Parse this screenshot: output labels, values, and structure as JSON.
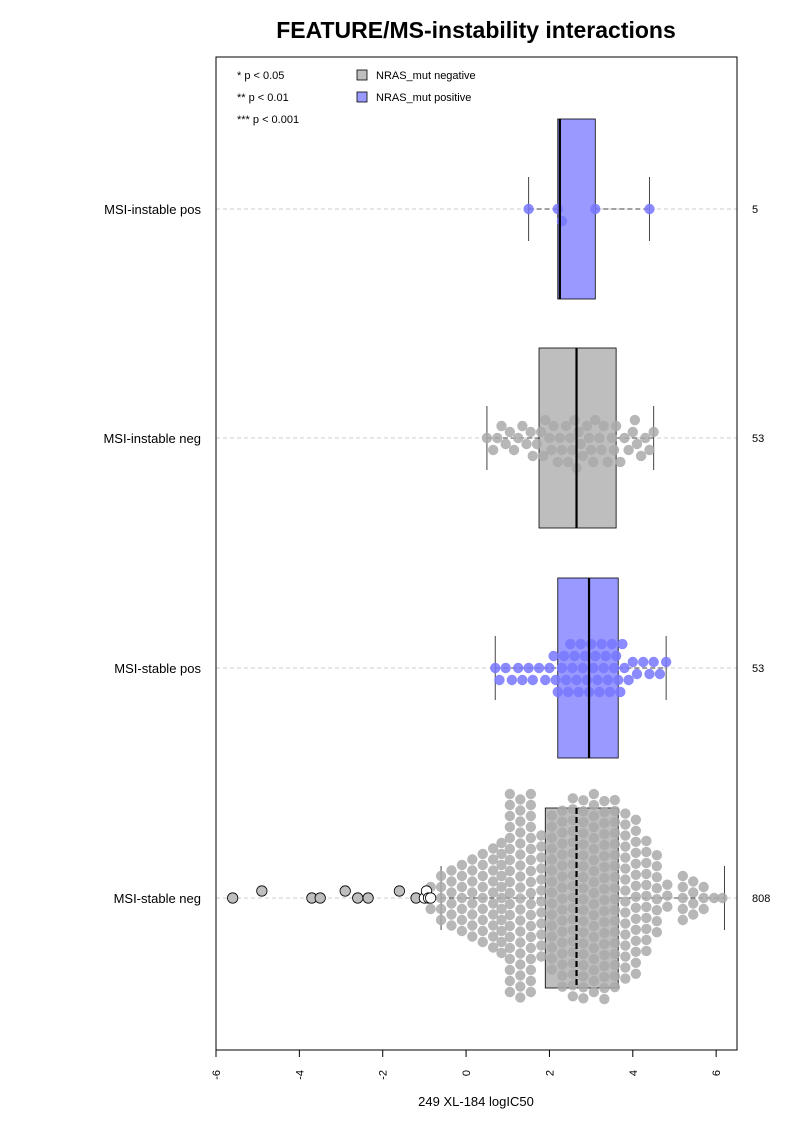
{
  "chart_data": {
    "type": "box-beeswarm",
    "title": "FEATURE/MS-instability interactions",
    "xlabel": "249 XL-184 logIC50",
    "xlim": [
      -6,
      6.5
    ],
    "x_ticks": [
      "-6",
      "-4",
      "-2",
      "0",
      "2",
      "4",
      "6"
    ],
    "colors": {
      "negative": "#bebebe",
      "positive": "#9999ff",
      "negative_point": "#aaaaaa",
      "positive_point": "#7777ff",
      "grid": "#cccccc"
    },
    "significance_legend": [
      "* p < 0.05",
      "** p < 0.01",
      "*** p < 0.001"
    ],
    "legend": [
      {
        "label": "NRAS_mut negative",
        "color": "#bebebe"
      },
      {
        "label": "NRAS_mut positive",
        "color": "#9999ff"
      }
    ],
    "groups": [
      {
        "label": "MSI-instable pos",
        "n": "5",
        "color": "positive",
        "whisker": [
          1.5,
          4.4
        ],
        "box": [
          2.2,
          3.1
        ],
        "median": 2.25,
        "points": [
          1.5,
          2.2,
          2.3,
          3.1,
          4.4
        ],
        "outliers": []
      },
      {
        "label": "MSI-instable neg",
        "n": "53",
        "color": "negative",
        "whisker": [
          0.5,
          4.5
        ],
        "box": [
          1.75,
          3.6
        ],
        "median": 2.65,
        "points": [
          0.5,
          0.65,
          0.75,
          0.85,
          0.95,
          1.05,
          1.15,
          1.25,
          1.35,
          1.45,
          1.55,
          1.6,
          1.7,
          1.8,
          1.85,
          1.9,
          2.0,
          2.05,
          2.1,
          2.2,
          2.25,
          2.3,
          2.4,
          2.45,
          2.5,
          2.55,
          2.6,
          2.65,
          2.7,
          2.75,
          2.8,
          2.9,
          2.95,
          3.0,
          3.05,
          3.1,
          3.2,
          3.25,
          3.3,
          3.4,
          3.5,
          3.55,
          3.6,
          3.7,
          3.8,
          3.9,
          4.0,
          4.05,
          4.1,
          4.2,
          4.3,
          4.4,
          4.5
        ],
        "outliers": []
      },
      {
        "label": "MSI-stable pos",
        "n": "53",
        "color": "positive",
        "whisker": [
          0.7,
          4.8
        ],
        "box": [
          2.2,
          3.65
        ],
        "median": 2.95,
        "points": [
          0.7,
          0.8,
          0.95,
          1.1,
          1.25,
          1.35,
          1.5,
          1.6,
          1.75,
          1.9,
          2.0,
          2.1,
          2.15,
          2.2,
          2.3,
          2.35,
          2.4,
          2.45,
          2.5,
          2.55,
          2.6,
          2.65,
          2.7,
          2.75,
          2.8,
          2.85,
          2.9,
          2.95,
          3.0,
          3.05,
          3.1,
          3.15,
          3.2,
          3.25,
          3.3,
          3.35,
          3.4,
          3.45,
          3.5,
          3.55,
          3.6,
          3.65,
          3.7,
          3.75,
          3.8,
          3.9,
          4.0,
          4.1,
          4.25,
          4.4,
          4.5,
          4.65,
          4.8
        ],
        "outliers": []
      },
      {
        "label": "MSI-stable neg",
        "n": "808",
        "color": "negative",
        "whisker": [
          -0.6,
          6.2
        ],
        "box": [
          1.9,
          3.65
        ],
        "median": 2.65,
        "points": [],
        "outliers": [
          -5.6,
          -4.9,
          -3.7,
          -3.5,
          -2.9,
          -2.6,
          -2.35,
          -1.6,
          -1.2,
          -1.0,
          -0.95,
          -0.9,
          -0.85
        ]
      }
    ]
  }
}
